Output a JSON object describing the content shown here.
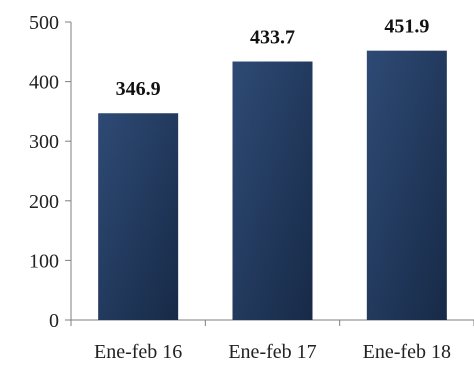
{
  "colors": {
    "bar_light": "#2e4a75",
    "bar_dark": "#172a47",
    "axis": "#7f7f7f"
  },
  "chart_data": {
    "type": "bar",
    "title": "",
    "xlabel": "",
    "ylabel": "",
    "categories": [
      "Ene-feb 16",
      "Ene-feb 17",
      "Ene-feb 18"
    ],
    "values": [
      346.9,
      433.7,
      451.9
    ],
    "data_labels": [
      "346.9",
      "433.7",
      "451.9"
    ],
    "ylim": [
      0,
      500
    ],
    "yticks": [
      0,
      100,
      200,
      300,
      400,
      500
    ],
    "ytick_labels": [
      "0",
      "100",
      "200",
      "300",
      "400",
      "500"
    ],
    "grid": false,
    "legend": "none"
  }
}
